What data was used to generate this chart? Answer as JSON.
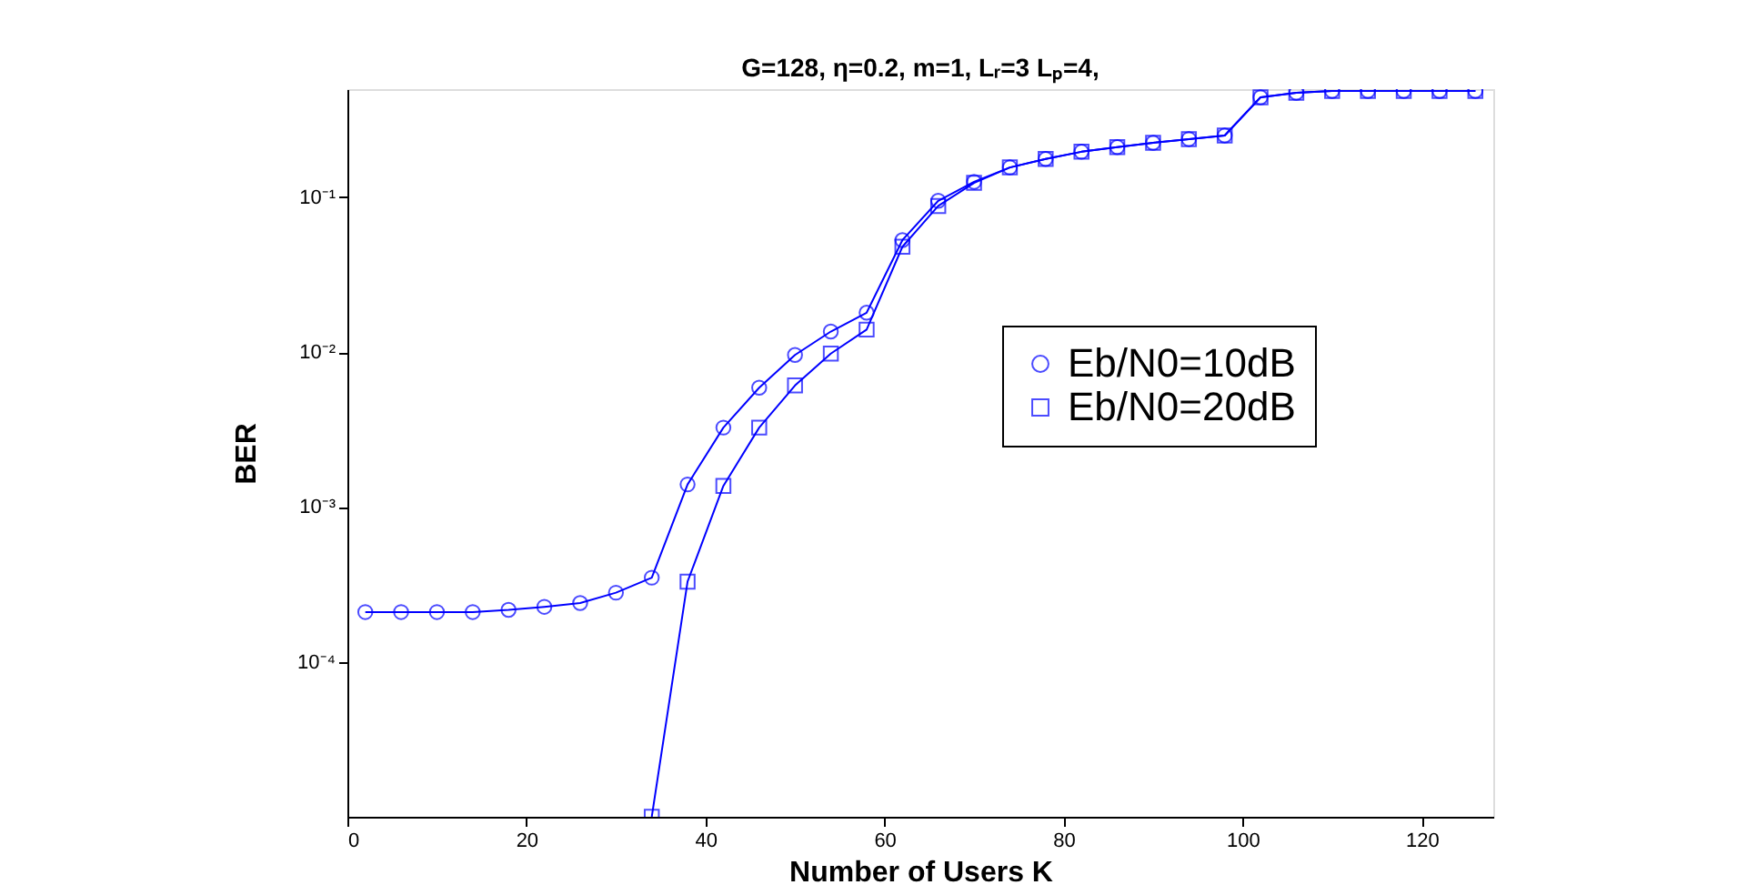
{
  "chart_data": {
    "type": "line",
    "title": "G=128, η=0.2, m=1,  Lᵣ=3  Lₚ=4,",
    "xlabel": "Number of Users K",
    "ylabel": "BER",
    "x": [
      2,
      6,
      10,
      14,
      18,
      22,
      26,
      30,
      34,
      38,
      42,
      46,
      50,
      54,
      58,
      62,
      66,
      70,
      74,
      78,
      82,
      86,
      90,
      94,
      98,
      102,
      106,
      110,
      114,
      118,
      122,
      126
    ],
    "series": [
      {
        "name": "Eb/N0=10dB",
        "color": "#0000ff",
        "marker": "circle",
        "values": [
          0.00021,
          0.00021,
          0.00021,
          0.00021,
          0.000217,
          0.000227,
          0.00024,
          0.00028,
          0.00035,
          0.0014,
          0.00326,
          0.0059,
          0.0096,
          0.0136,
          0.018,
          0.053,
          0.095,
          0.126,
          0.156,
          0.177,
          0.197,
          0.211,
          0.225,
          0.238,
          0.251,
          0.443,
          0.473,
          0.486,
          0.486,
          0.486,
          0.486,
          0.486
        ]
      },
      {
        "name": "Eb/N0=20dB",
        "color": "#0000ff",
        "marker": "square",
        "x": [
          34,
          38,
          42,
          46,
          50,
          54,
          58,
          62,
          66,
          70,
          74,
          78,
          82,
          86,
          90,
          94,
          98,
          102,
          106,
          110,
          114,
          118,
          122,
          126
        ],
        "values": [
          1e-05,
          0.00033,
          0.00137,
          0.00326,
          0.0061,
          0.0098,
          0.014,
          0.048,
          0.088,
          0.124,
          0.156,
          0.177,
          0.197,
          0.211,
          0.225,
          0.238,
          0.251,
          0.443,
          0.473,
          0.486,
          0.486,
          0.486,
          0.486,
          0.486
        ]
      }
    ],
    "log": "y",
    "xlim": [
      0,
      128
    ],
    "xticks": [
      0,
      20,
      40,
      60,
      80,
      100,
      120
    ],
    "ylim": [
      1e-05,
      0.5
    ],
    "yticks": [
      {
        "value": 0.0001,
        "label": "10⁻⁴"
      },
      {
        "value": 0.001,
        "label": "10⁻³"
      },
      {
        "value": 0.01,
        "label": "10⁻²"
      },
      {
        "value": 0.1,
        "label": "10⁻¹"
      }
    ],
    "grid": false,
    "legend": "right"
  }
}
